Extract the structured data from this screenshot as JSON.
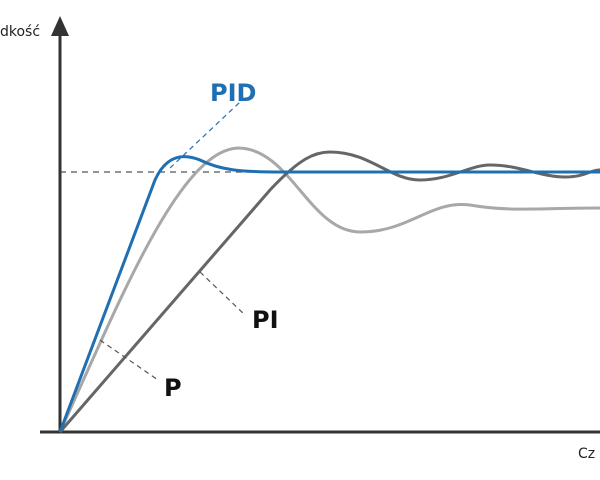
{
  "axes": {
    "y_label": "dkość",
    "x_label": "Cz"
  },
  "curves": [
    {
      "label": "PID"
    },
    {
      "label": "PI"
    },
    {
      "label": "P"
    }
  ]
}
